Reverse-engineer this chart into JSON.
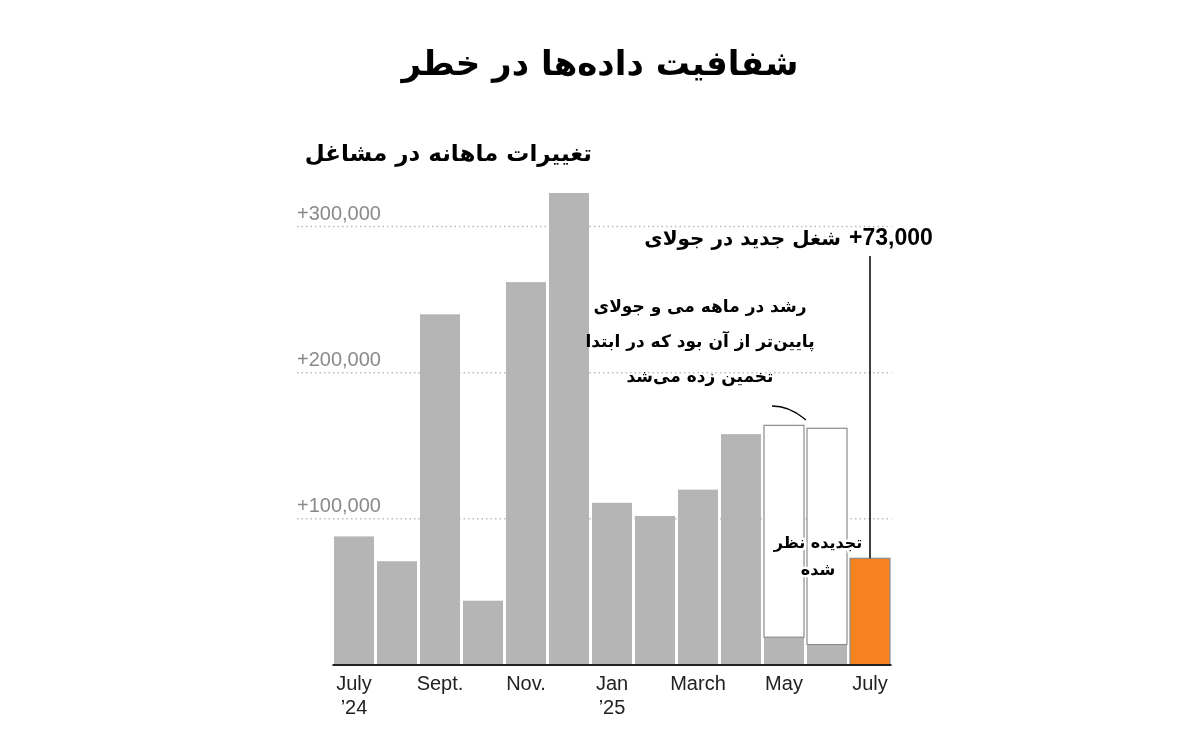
{
  "chart_data": {
    "type": "bar",
    "title": "شفافیت داده‌ها در خطر",
    "subtitle": "تغییرات ماهانه در مشاغل",
    "categories": [
      "July ’24",
      null,
      "Sept.",
      null,
      "Nov.",
      null,
      "Jan ’25",
      null,
      "March",
      null,
      "May",
      null,
      "July"
    ],
    "stacked": true,
    "series": [
      {
        "colors": [
          "#b5b5b5",
          "#b5b5b5",
          "#b5b5b5",
          "#b5b5b5",
          "#b5b5b5",
          "#b5b5b5",
          "#b5b5b5",
          "#b5b5b5",
          "#b5b5b5",
          "#b5b5b5",
          "#b5b5b5",
          "#b5b5b5",
          "#f5821f"
        ],
        "values": [
          88000,
          71000,
          240000,
          44000,
          262000,
          323000,
          111000,
          102000,
          120000,
          158000,
          19000,
          14000,
          73000
        ],
        "value_labels": [
          null,
          null,
          null,
          null,
          null,
          null,
          null,
          null,
          null,
          null,
          null,
          null,
          "+73,000"
        ]
      },
      {
        "color": "#ffffff",
        "values": [
          null,
          null,
          null,
          null,
          null,
          null,
          null,
          null,
          null,
          null,
          145000,
          148000,
          null
        ]
      }
    ],
    "ylim": [
      0,
      323000
    ],
    "yticks": [
      {
        "value": 100000,
        "label": "+100,000"
      },
      {
        "value": 200000,
        "label": "+200,000"
      },
      {
        "value": 300000,
        "label": "+300,000"
      }
    ],
    "grid": "y",
    "annotations": [
      "شغل جدید در جولای",
      "رشد در ماهه می و جولای پایین‌تر از آن بود که در ابتدا تخمین زده می‌شد",
      "تجدیده نظر شده"
    ]
  }
}
